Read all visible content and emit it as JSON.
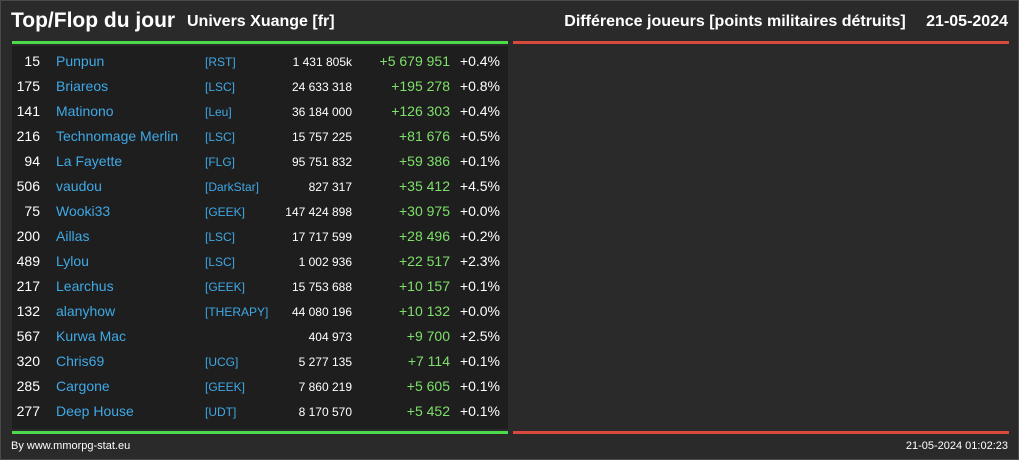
{
  "header": {
    "title": "Top/Flop du jour",
    "universe": "Univers Xuange [fr]",
    "metric": "Différence joueurs [points militaires détruits]",
    "date": "21-05-2024"
  },
  "colors": {
    "top_line": "#4cd94c",
    "flop_line": "#d94a3c",
    "name": "#3fa9e6",
    "gain": "#7ee06a"
  },
  "rows": [
    {
      "rank": "15",
      "name": "Punpun",
      "ally": "[RST]",
      "points": "1 431 805k",
      "diff": "+5 679 951",
      "pct": "+0.4%"
    },
    {
      "rank": "175",
      "name": "Briareos",
      "ally": "[LSC]",
      "points": "24 633 318",
      "diff": "+195 278",
      "pct": "+0.8%"
    },
    {
      "rank": "141",
      "name": "Matinono",
      "ally": "[Leu]",
      "points": "36 184 000",
      "diff": "+126 303",
      "pct": "+0.4%"
    },
    {
      "rank": "216",
      "name": "Technomage Merlin",
      "ally": "[LSC]",
      "points": "15 757 225",
      "diff": "+81 676",
      "pct": "+0.5%"
    },
    {
      "rank": "94",
      "name": "La Fayette",
      "ally": "[FLG]",
      "points": "95 751 832",
      "diff": "+59 386",
      "pct": "+0.1%"
    },
    {
      "rank": "506",
      "name": "vaudou",
      "ally": "[DarkStar]",
      "points": "827 317",
      "diff": "+35 412",
      "pct": "+4.5%"
    },
    {
      "rank": "75",
      "name": "Wooki33",
      "ally": "[GEEK]",
      "points": "147 424 898",
      "diff": "+30 975",
      "pct": "+0.0%"
    },
    {
      "rank": "200",
      "name": "Aillas",
      "ally": "[LSC]",
      "points": "17 717 599",
      "diff": "+28 496",
      "pct": "+0.2%"
    },
    {
      "rank": "489",
      "name": "Lylou",
      "ally": "[LSC]",
      "points": "1 002 936",
      "diff": "+22 517",
      "pct": "+2.3%"
    },
    {
      "rank": "217",
      "name": "Learchus",
      "ally": "[GEEK]",
      "points": "15 753 688",
      "diff": "+10 157",
      "pct": "+0.1%"
    },
    {
      "rank": "132",
      "name": "alanyhow",
      "ally": "[THERAPY]",
      "points": "44 080 196",
      "diff": "+10 132",
      "pct": "+0.0%"
    },
    {
      "rank": "567",
      "name": "Kurwa Mac",
      "ally": "",
      "points": "404 973",
      "diff": "+9 700",
      "pct": "+2.5%"
    },
    {
      "rank": "320",
      "name": "Chris69",
      "ally": "[UCG]",
      "points": "5 277 135",
      "diff": "+7 114",
      "pct": "+0.1%"
    },
    {
      "rank": "285",
      "name": "Cargone",
      "ally": "[GEEK]",
      "points": "7 860 219",
      "diff": "+5 605",
      "pct": "+0.1%"
    },
    {
      "rank": "277",
      "name": "Deep House",
      "ally": "[UDT]",
      "points": "8 170 570",
      "diff": "+5 452",
      "pct": "+0.1%"
    }
  ],
  "footer": {
    "source": "By www.mmorpg-stat.eu",
    "timestamp": "21-05-2024 01:02:23"
  }
}
